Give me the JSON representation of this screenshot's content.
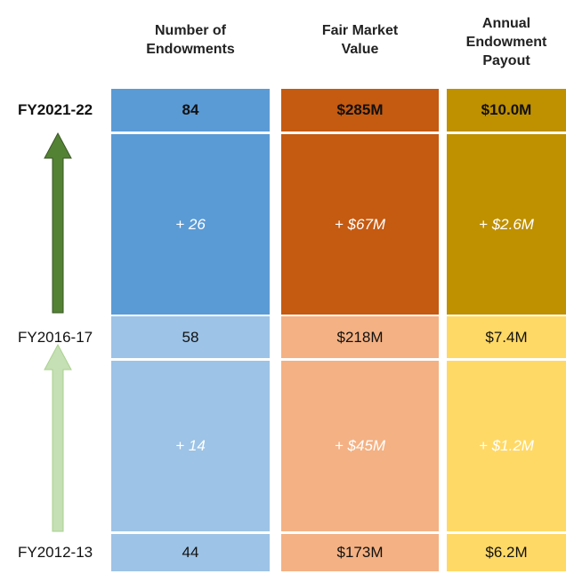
{
  "columns": [
    "Number of Endowments",
    "Fair Market Value",
    "Annual Endowment Payout"
  ],
  "rows": [
    {
      "label": "FY2021-22",
      "values": [
        "84",
        "$285M",
        "$10.0M"
      ]
    },
    {
      "label": "FY2016-17",
      "values": [
        "58",
        "$218M",
        "$7.4M"
      ]
    },
    {
      "label": "FY2012-13",
      "values": [
        "44",
        "$173M",
        "$6.2M"
      ]
    }
  ],
  "changes": [
    [
      "+ 26",
      "+ $67M",
      "+ $2.6M"
    ],
    [
      "+ 14",
      "+ $45M",
      "+ $1.2M"
    ]
  ]
}
